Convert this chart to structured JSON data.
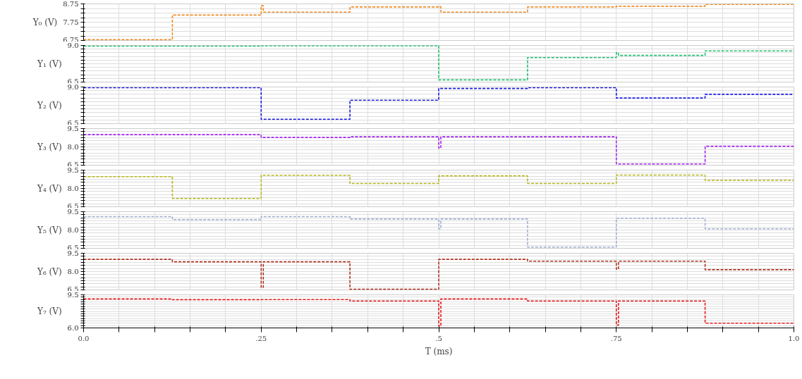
{
  "chart_data": [
    {
      "type": "step",
      "ylabel": "Y₀ (V)",
      "ylim": [
        6.75,
        8.75
      ],
      "yticks": [
        6.75,
        {
          "value": 7.0,
          "label": null
        },
        {
          "value": 7.25,
          "label": null
        },
        {
          "value": 7.5,
          "label": null
        },
        7.75,
        {
          "value": 8.0,
          "label": null
        },
        {
          "value": 8.25,
          "label": null
        },
        {
          "value": 8.5,
          "label": null
        },
        8.75
      ],
      "xlim": [
        0,
        1
      ],
      "xticks": [
        {
          "value": 0,
          "label": null
        },
        {
          "value": 0.05,
          "label": null
        },
        {
          "value": 0.1,
          "label": null
        },
        {
          "value": 0.15,
          "label": null
        },
        {
          "value": 0.2,
          "label": null
        },
        {
          "value": 0.25,
          "label": null
        },
        {
          "value": 0.3,
          "label": null
        },
        {
          "value": 0.35,
          "label": null
        },
        {
          "value": 0.4,
          "label": null
        },
        {
          "value": 0.45,
          "label": null
        },
        {
          "value": 0.5,
          "label": null
        },
        {
          "value": 0.55,
          "label": null
        },
        {
          "value": 0.6,
          "label": null
        },
        {
          "value": 0.65,
          "label": null
        },
        {
          "value": 0.7,
          "label": null
        },
        {
          "value": 0.75,
          "label": null
        },
        {
          "value": 0.8,
          "label": null
        },
        {
          "value": 0.85,
          "label": null
        },
        {
          "value": 0.9,
          "label": null
        },
        {
          "value": 0.95,
          "label": null
        },
        {
          "value": 1,
          "label": null
        }
      ],
      "tick_labels": "y",
      "grid": true,
      "line_style": "dashed",
      "series": [
        {
          "color": "#f08a24",
          "x": [
            0,
            0.125,
            0.25,
            0.253,
            0.375,
            0.5,
            0.503,
            0.625,
            0.75,
            0.875,
            1.0
          ],
          "values": [
            6.8,
            8.14,
            8.65,
            8.3,
            8.58,
            8.6,
            8.3,
            8.58,
            8.62,
            8.72,
            8.72
          ]
        }
      ]
    },
    {
      "type": "step",
      "ylabel": "Y₁ (V)",
      "ylim": [
        6.5,
        9.0
      ],
      "yticks": [
        {
          "value": 6.5,
          "label": "6.5"
        },
        {
          "value": 6.75,
          "label": null
        },
        {
          "value": 7.0,
          "label": null
        },
        {
          "value": 7.25,
          "label": null
        },
        {
          "value": 7.5,
          "label": null
        },
        {
          "value": 7.75,
          "label": null
        },
        {
          "value": 8.0,
          "label": null
        },
        {
          "value": 8.25,
          "label": null
        },
        {
          "value": 8.5,
          "label": null
        },
        {
          "value": 8.75,
          "label": null
        },
        {
          "value": 9.0,
          "label": "9.0"
        }
      ],
      "xlim": [
        0,
        1
      ],
      "xticks": [
        {
          "value": 0,
          "label": null
        },
        {
          "value": 0.05,
          "label": null
        },
        {
          "value": 0.1,
          "label": null
        },
        {
          "value": 0.15,
          "label": null
        },
        {
          "value": 0.2,
          "label": null
        },
        {
          "value": 0.25,
          "label": null
        },
        {
          "value": 0.3,
          "label": null
        },
        {
          "value": 0.35,
          "label": null
        },
        {
          "value": 0.4,
          "label": null
        },
        {
          "value": 0.45,
          "label": null
        },
        {
          "value": 0.5,
          "label": null
        },
        {
          "value": 0.55,
          "label": null
        },
        {
          "value": 0.6,
          "label": null
        },
        {
          "value": 0.65,
          "label": null
        },
        {
          "value": 0.7,
          "label": null
        },
        {
          "value": 0.75,
          "label": null
        },
        {
          "value": 0.8,
          "label": null
        },
        {
          "value": 0.85,
          "label": null
        },
        {
          "value": 0.9,
          "label": null
        },
        {
          "value": 0.95,
          "label": null
        },
        {
          "value": 1,
          "label": null
        }
      ],
      "tick_labels": "y",
      "grid": true,
      "line_style": "dashed",
      "series": [
        {
          "color": "#1fbf6f",
          "x": [
            0,
            0.25,
            0.5,
            0.625,
            0.75,
            0.753,
            0.875,
            1.0
          ],
          "values": [
            8.95,
            8.98,
            6.65,
            8.17,
            8.5,
            8.32,
            8.63,
            8.63
          ]
        }
      ]
    },
    {
      "type": "step",
      "ylabel": "Y₂ (V)",
      "ylim": [
        6.5,
        9.0
      ],
      "yticks": [
        {
          "value": 6.5,
          "label": "6.5"
        },
        {
          "value": 6.75,
          "label": null
        },
        {
          "value": 7.0,
          "label": null
        },
        {
          "value": 7.25,
          "label": null
        },
        {
          "value": 7.5,
          "label": null
        },
        {
          "value": 7.75,
          "label": null
        },
        {
          "value": 8.0,
          "label": null
        },
        {
          "value": 8.25,
          "label": null
        },
        {
          "value": 8.5,
          "label": null
        },
        {
          "value": 8.75,
          "label": null
        },
        {
          "value": 9.0,
          "label": "9.0"
        }
      ],
      "xlim": [
        0,
        1
      ],
      "xticks": [
        {
          "value": 0,
          "label": null
        },
        {
          "value": 0.05,
          "label": null
        },
        {
          "value": 0.1,
          "label": null
        },
        {
          "value": 0.15,
          "label": null
        },
        {
          "value": 0.2,
          "label": null
        },
        {
          "value": 0.25,
          "label": null
        },
        {
          "value": 0.3,
          "label": null
        },
        {
          "value": 0.35,
          "label": null
        },
        {
          "value": 0.4,
          "label": null
        },
        {
          "value": 0.45,
          "label": null
        },
        {
          "value": 0.5,
          "label": null
        },
        {
          "value": 0.55,
          "label": null
        },
        {
          "value": 0.6,
          "label": null
        },
        {
          "value": 0.65,
          "label": null
        },
        {
          "value": 0.7,
          "label": null
        },
        {
          "value": 0.75,
          "label": null
        },
        {
          "value": 0.8,
          "label": null
        },
        {
          "value": 0.85,
          "label": null
        },
        {
          "value": 0.9,
          "label": null
        },
        {
          "value": 0.95,
          "label": null
        },
        {
          "value": 1,
          "label": null
        }
      ],
      "tick_labels": "y",
      "grid": true,
      "line_style": "dashed",
      "series": [
        {
          "color": "#1a1adf",
          "x": [
            0,
            0.25,
            0.375,
            0.5,
            0.625,
            0.75,
            0.875,
            1.0
          ],
          "values": [
            8.95,
            6.8,
            8.1,
            8.9,
            8.95,
            8.25,
            8.5,
            8.5
          ]
        }
      ]
    },
    {
      "type": "step",
      "ylabel": "Y₃ (V)",
      "ylim": [
        6.5,
        9.5
      ],
      "yticks": [
        {
          "value": 6.5,
          "label": "6.5"
        },
        {
          "value": 6.75,
          "label": null
        },
        {
          "value": 7.0,
          "label": null
        },
        {
          "value": 7.25,
          "label": null
        },
        {
          "value": 7.5,
          "label": null
        },
        {
          "value": 7.75,
          "label": null
        },
        {
          "value": 8.0,
          "label": "8.0"
        },
        {
          "value": 8.25,
          "label": null
        },
        {
          "value": 8.5,
          "label": null
        },
        {
          "value": 8.75,
          "label": null
        },
        {
          "value": 9.0,
          "label": null
        },
        {
          "value": 9.25,
          "label": null
        },
        {
          "value": 9.5,
          "label": "9.5"
        }
      ],
      "xlim": [
        0,
        1
      ],
      "xticks": [
        {
          "value": 0,
          "label": null
        },
        {
          "value": 0.05,
          "label": null
        },
        {
          "value": 0.1,
          "label": null
        },
        {
          "value": 0.15,
          "label": null
        },
        {
          "value": 0.2,
          "label": null
        },
        {
          "value": 0.25,
          "label": null
        },
        {
          "value": 0.3,
          "label": null
        },
        {
          "value": 0.35,
          "label": null
        },
        {
          "value": 0.4,
          "label": null
        },
        {
          "value": 0.45,
          "label": null
        },
        {
          "value": 0.5,
          "label": null
        },
        {
          "value": 0.55,
          "label": null
        },
        {
          "value": 0.6,
          "label": null
        },
        {
          "value": 0.65,
          "label": null
        },
        {
          "value": 0.7,
          "label": null
        },
        {
          "value": 0.75,
          "label": null
        },
        {
          "value": 0.8,
          "label": null
        },
        {
          "value": 0.85,
          "label": null
        },
        {
          "value": 0.9,
          "label": null
        },
        {
          "value": 0.95,
          "label": null
        },
        {
          "value": 1,
          "label": null
        }
      ],
      "tick_labels": "y",
      "grid": true,
      "line_style": "dashed",
      "series": [
        {
          "color": "#a020f0",
          "x": [
            0,
            0.25,
            0.375,
            0.5,
            0.503,
            0.75,
            0.875,
            1.0
          ],
          "values": [
            9.0,
            8.77,
            8.83,
            7.9,
            8.83,
            6.6,
            8.05,
            8.05
          ]
        }
      ]
    },
    {
      "type": "step",
      "ylabel": "Y₄ (V)",
      "ylim": [
        6.5,
        9.5
      ],
      "yticks": [
        {
          "value": 6.5,
          "label": "6.5"
        },
        {
          "value": 6.75,
          "label": null
        },
        {
          "value": 7.0,
          "label": null
        },
        {
          "value": 7.25,
          "label": null
        },
        {
          "value": 7.5,
          "label": null
        },
        {
          "value": 7.75,
          "label": null
        },
        {
          "value": 8.0,
          "label": "8.0"
        },
        {
          "value": 8.25,
          "label": null
        },
        {
          "value": 8.5,
          "label": null
        },
        {
          "value": 8.75,
          "label": null
        },
        {
          "value": 9.0,
          "label": null
        },
        {
          "value": 9.25,
          "label": null
        },
        {
          "value": 9.5,
          "label": "9.5"
        }
      ],
      "xlim": [
        0,
        1
      ],
      "xticks": [
        {
          "value": 0,
          "label": null
        },
        {
          "value": 0.05,
          "label": null
        },
        {
          "value": 0.1,
          "label": null
        },
        {
          "value": 0.15,
          "label": null
        },
        {
          "value": 0.2,
          "label": null
        },
        {
          "value": 0.25,
          "label": null
        },
        {
          "value": 0.3,
          "label": null
        },
        {
          "value": 0.35,
          "label": null
        },
        {
          "value": 0.4,
          "label": null
        },
        {
          "value": 0.45,
          "label": null
        },
        {
          "value": 0.5,
          "label": null
        },
        {
          "value": 0.55,
          "label": null
        },
        {
          "value": 0.6,
          "label": null
        },
        {
          "value": 0.65,
          "label": null
        },
        {
          "value": 0.7,
          "label": null
        },
        {
          "value": 0.75,
          "label": null
        },
        {
          "value": 0.8,
          "label": null
        },
        {
          "value": 0.85,
          "label": null
        },
        {
          "value": 0.9,
          "label": null
        },
        {
          "value": 0.95,
          "label": null
        },
        {
          "value": 1,
          "label": null
        }
      ],
      "tick_labels": "y",
      "grid": true,
      "line_style": "dashed",
      "series": [
        {
          "color": "#b5b51a",
          "x": [
            0,
            0.125,
            0.25,
            0.375,
            0.5,
            0.625,
            0.75,
            0.875,
            1.0
          ],
          "values": [
            8.97,
            7.18,
            9.08,
            8.4,
            9.03,
            8.4,
            9.1,
            8.66,
            8.66
          ]
        }
      ]
    },
    {
      "type": "step",
      "ylabel": "Y₅ (V)",
      "ylim": [
        6.5,
        9.5
      ],
      "yticks": [
        {
          "value": 6.5,
          "label": "6.5"
        },
        {
          "value": 6.75,
          "label": null
        },
        {
          "value": 7.0,
          "label": null
        },
        {
          "value": 7.25,
          "label": null
        },
        {
          "value": 7.5,
          "label": null
        },
        {
          "value": 7.75,
          "label": null
        },
        {
          "value": 8.0,
          "label": "8.0"
        },
        {
          "value": 8.25,
          "label": null
        },
        {
          "value": 8.5,
          "label": null
        },
        {
          "value": 8.75,
          "label": null
        },
        {
          "value": 9.0,
          "label": null
        },
        {
          "value": 9.25,
          "label": null
        },
        {
          "value": 9.5,
          "label": "9.5"
        }
      ],
      "xlim": [
        0,
        1
      ],
      "xticks": [
        {
          "value": 0,
          "label": null
        },
        {
          "value": 0.05,
          "label": null
        },
        {
          "value": 0.1,
          "label": null
        },
        {
          "value": 0.15,
          "label": null
        },
        {
          "value": 0.2,
          "label": null
        },
        {
          "value": 0.25,
          "label": null
        },
        {
          "value": 0.3,
          "label": null
        },
        {
          "value": 0.35,
          "label": null
        },
        {
          "value": 0.4,
          "label": null
        },
        {
          "value": 0.45,
          "label": null
        },
        {
          "value": 0.5,
          "label": null
        },
        {
          "value": 0.55,
          "label": null
        },
        {
          "value": 0.6,
          "label": null
        },
        {
          "value": 0.65,
          "label": null
        },
        {
          "value": 0.7,
          "label": null
        },
        {
          "value": 0.75,
          "label": null
        },
        {
          "value": 0.8,
          "label": null
        },
        {
          "value": 0.85,
          "label": null
        },
        {
          "value": 0.9,
          "label": null
        },
        {
          "value": 0.95,
          "label": null
        },
        {
          "value": 1,
          "label": null
        }
      ],
      "tick_labels": "y",
      "grid": true,
      "line_style": "dashed",
      "series": [
        {
          "color": "#a0aed0",
          "x": [
            0,
            0.125,
            0.25,
            0.375,
            0.5,
            0.503,
            0.625,
            0.75,
            0.875,
            1.0
          ],
          "values": [
            9.1,
            8.85,
            9.1,
            8.9,
            8.1,
            8.9,
            6.6,
            8.95,
            8.1,
            8.1
          ]
        }
      ]
    },
    {
      "type": "step",
      "ylabel": "Y₆ (V)",
      "ylim": [
        6.5,
        9.5
      ],
      "yticks": [
        {
          "value": 6.5,
          "label": "6.5"
        },
        {
          "value": 6.75,
          "label": null
        },
        {
          "value": 7.0,
          "label": null
        },
        {
          "value": 7.25,
          "label": null
        },
        {
          "value": 7.5,
          "label": null
        },
        {
          "value": 7.75,
          "label": null
        },
        {
          "value": 8.0,
          "label": "8.0"
        },
        {
          "value": 8.25,
          "label": null
        },
        {
          "value": 8.5,
          "label": null
        },
        {
          "value": 8.75,
          "label": null
        },
        {
          "value": 9.0,
          "label": null
        },
        {
          "value": 9.25,
          "label": null
        },
        {
          "value": 9.5,
          "label": "9.5"
        }
      ],
      "xlim": [
        0,
        1
      ],
      "xticks": [
        {
          "value": 0,
          "label": null
        },
        {
          "value": 0.05,
          "label": null
        },
        {
          "value": 0.1,
          "label": null
        },
        {
          "value": 0.15,
          "label": null
        },
        {
          "value": 0.2,
          "label": null
        },
        {
          "value": 0.25,
          "label": null
        },
        {
          "value": 0.3,
          "label": null
        },
        {
          "value": 0.35,
          "label": null
        },
        {
          "value": 0.4,
          "label": null
        },
        {
          "value": 0.45,
          "label": null
        },
        {
          "value": 0.5,
          "label": null
        },
        {
          "value": 0.55,
          "label": null
        },
        {
          "value": 0.6,
          "label": null
        },
        {
          "value": 0.65,
          "label": null
        },
        {
          "value": 0.7,
          "label": null
        },
        {
          "value": 0.75,
          "label": null
        },
        {
          "value": 0.8,
          "label": null
        },
        {
          "value": 0.85,
          "label": null
        },
        {
          "value": 0.9,
          "label": null
        },
        {
          "value": 0.95,
          "label": null
        },
        {
          "value": 1,
          "label": null
        }
      ],
      "tick_labels": "y",
      "grid": true,
      "line_style": "dashed",
      "series": [
        {
          "color": "#b03020",
          "x": [
            0,
            0.125,
            0.25,
            0.253,
            0.375,
            0.5,
            0.625,
            0.75,
            0.753,
            0.875,
            1.0
          ],
          "values": [
            9.0,
            8.8,
            6.7,
            8.8,
            6.55,
            9.0,
            8.85,
            8.2,
            8.85,
            8.15,
            8.15
          ]
        }
      ]
    },
    {
      "type": "step",
      "ylabel": "Y₇ (V)",
      "xlabel": "T (ms)",
      "ylim": [
        6.0,
        9.5
      ],
      "yticks": [
        {
          "value": 6.0,
          "label": "6.0"
        },
        {
          "value": 6.25,
          "label": null
        },
        {
          "value": 6.5,
          "label": null
        },
        {
          "value": 6.75,
          "label": null
        },
        {
          "value": 7.0,
          "label": null
        },
        {
          "value": 7.25,
          "label": null
        },
        {
          "value": 7.5,
          "label": null
        },
        {
          "value": 7.75,
          "label": null
        },
        {
          "value": 8.0,
          "label": null
        },
        {
          "value": 8.25,
          "label": null
        },
        {
          "value": 8.5,
          "label": null
        },
        {
          "value": 8.75,
          "label": null
        },
        {
          "value": 9.0,
          "label": null
        },
        {
          "value": 9.25,
          "label": null
        },
        {
          "value": 9.5,
          "label": "9.5"
        }
      ],
      "xlim": [
        0,
        1
      ],
      "xticks": [
        {
          "value": 0,
          "label": "0.0"
        },
        {
          "value": 0.05,
          "label": null
        },
        {
          "value": 0.1,
          "label": null
        },
        {
          "value": 0.15,
          "label": null
        },
        {
          "value": 0.2,
          "label": null
        },
        {
          "value": 0.25,
          "label": ".25"
        },
        {
          "value": 0.3,
          "label": null
        },
        {
          "value": 0.35,
          "label": null
        },
        {
          "value": 0.4,
          "label": null
        },
        {
          "value": 0.45,
          "label": null
        },
        {
          "value": 0.5,
          "label": ".5"
        },
        {
          "value": 0.55,
          "label": null
        },
        {
          "value": 0.6,
          "label": null
        },
        {
          "value": 0.65,
          "label": null
        },
        {
          "value": 0.7,
          "label": null
        },
        {
          "value": 0.75,
          "label": ".75"
        },
        {
          "value": 0.8,
          "label": null
        },
        {
          "value": 0.85,
          "label": null
        },
        {
          "value": 0.9,
          "label": null
        },
        {
          "value": 0.95,
          "label": null
        },
        {
          "value": 1,
          "label": "1.0"
        }
      ],
      "grid": true,
      "line_style": "dashed",
      "series": [
        {
          "color": "#e81818",
          "x": [
            0,
            0.125,
            0.25,
            0.375,
            0.5,
            0.503,
            0.625,
            0.75,
            0.753,
            0.875,
            1.0
          ],
          "values": [
            9.06,
            8.99,
            9.0,
            8.85,
            6.2,
            9.06,
            8.85,
            6.3,
            8.85,
            6.5,
            6.5
          ]
        }
      ]
    }
  ]
}
